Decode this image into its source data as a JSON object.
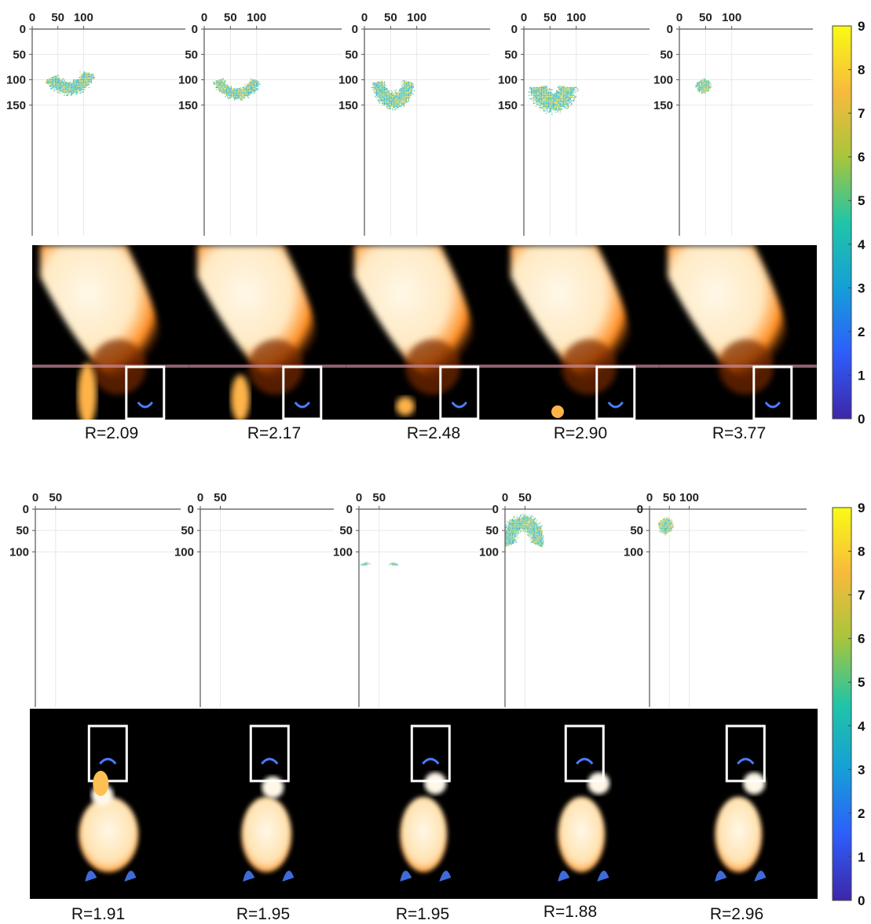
{
  "figure": {
    "colors": {
      "colormap": [
        "#3e26a8",
        "#2e5dfb",
        "#159fd7",
        "#20c5a7",
        "#a8c53b",
        "#f7ba3c",
        "#f9fb14"
      ],
      "flame_core": "#fff8e8",
      "flame_edge": "#ff8a1a",
      "blue_flame": "#4a7dff",
      "box_outline": "#ffffff"
    }
  },
  "chart_data": [
    {
      "type": "heatmap",
      "group": "top",
      "colorbar": {
        "ticks": [
          "9",
          "8",
          "7",
          "6",
          "5",
          "4",
          "3",
          "2",
          "1",
          "0"
        ],
        "range": [
          0,
          9
        ]
      },
      "panels": [
        {
          "label": "R=2.09",
          "x_ticks": [
            "0",
            "50",
            "100"
          ],
          "y_ticks": [
            "0",
            "50",
            "100",
            "150"
          ],
          "xlim": [
            0,
            125
          ],
          "ylim": [
            0,
            170
          ]
        },
        {
          "label": "R=2.17",
          "x_ticks": [
            "0",
            "50",
            "100"
          ],
          "y_ticks": [
            "0",
            "50",
            "100",
            "150"
          ],
          "xlim": [
            0,
            110
          ],
          "ylim": [
            0,
            170
          ]
        },
        {
          "label": "R=2.48",
          "x_ticks": [
            "0",
            "50",
            "100"
          ],
          "y_ticks": [
            "0",
            "50",
            "100",
            "150"
          ],
          "xlim": [
            0,
            120
          ],
          "ylim": [
            0,
            170
          ]
        },
        {
          "label": "R=2.90",
          "x_ticks": [
            "0",
            "50",
            "100"
          ],
          "y_ticks": [
            "0",
            "50",
            "100",
            "150"
          ],
          "xlim": [
            0,
            110
          ],
          "ylim": [
            0,
            170
          ]
        },
        {
          "label": "R=3.77",
          "x_ticks": [
            "0",
            "50",
            "100"
          ],
          "y_ticks": [
            "0",
            "50",
            "100",
            "150"
          ],
          "xlim": [
            0,
            120
          ],
          "ylim": [
            0,
            170
          ]
        }
      ]
    },
    {
      "type": "heatmap",
      "group": "bottom",
      "colorbar": {
        "ticks": [
          "9",
          "8",
          "7",
          "6",
          "5",
          "4",
          "3",
          "2",
          "1",
          "0"
        ],
        "range": [
          0,
          9
        ]
      },
      "panels": [
        {
          "label": "R=1.91",
          "x_ticks": [
            "0",
            "50"
          ],
          "y_ticks": [
            "0",
            "50",
            "100"
          ],
          "xlim": [
            0,
            95
          ],
          "ylim": [
            0,
            130
          ]
        },
        {
          "label": "R=1.95",
          "x_ticks": [
            "0",
            "50"
          ],
          "y_ticks": [
            "0",
            "50",
            "100"
          ],
          "xlim": [
            0,
            90
          ],
          "ylim": [
            0,
            130
          ]
        },
        {
          "label": "R=1.95",
          "x_ticks": [
            "0",
            "50"
          ],
          "y_ticks": [
            "0",
            "50",
            "100"
          ],
          "xlim": [
            0,
            95
          ],
          "ylim": [
            0,
            130
          ]
        },
        {
          "label": "R=1.88",
          "x_ticks": [
            "0",
            "50"
          ],
          "y_ticks": [
            "0",
            "50",
            "100"
          ],
          "xlim": [
            0,
            95
          ],
          "ylim": [
            0,
            130
          ]
        },
        {
          "label": "R=2.96",
          "x_ticks": [
            "0",
            "50",
            "100"
          ],
          "y_ticks": [
            "0",
            "50",
            "100"
          ],
          "xlim": [
            0,
            110
          ],
          "ylim": [
            0,
            130
          ]
        }
      ]
    }
  ]
}
